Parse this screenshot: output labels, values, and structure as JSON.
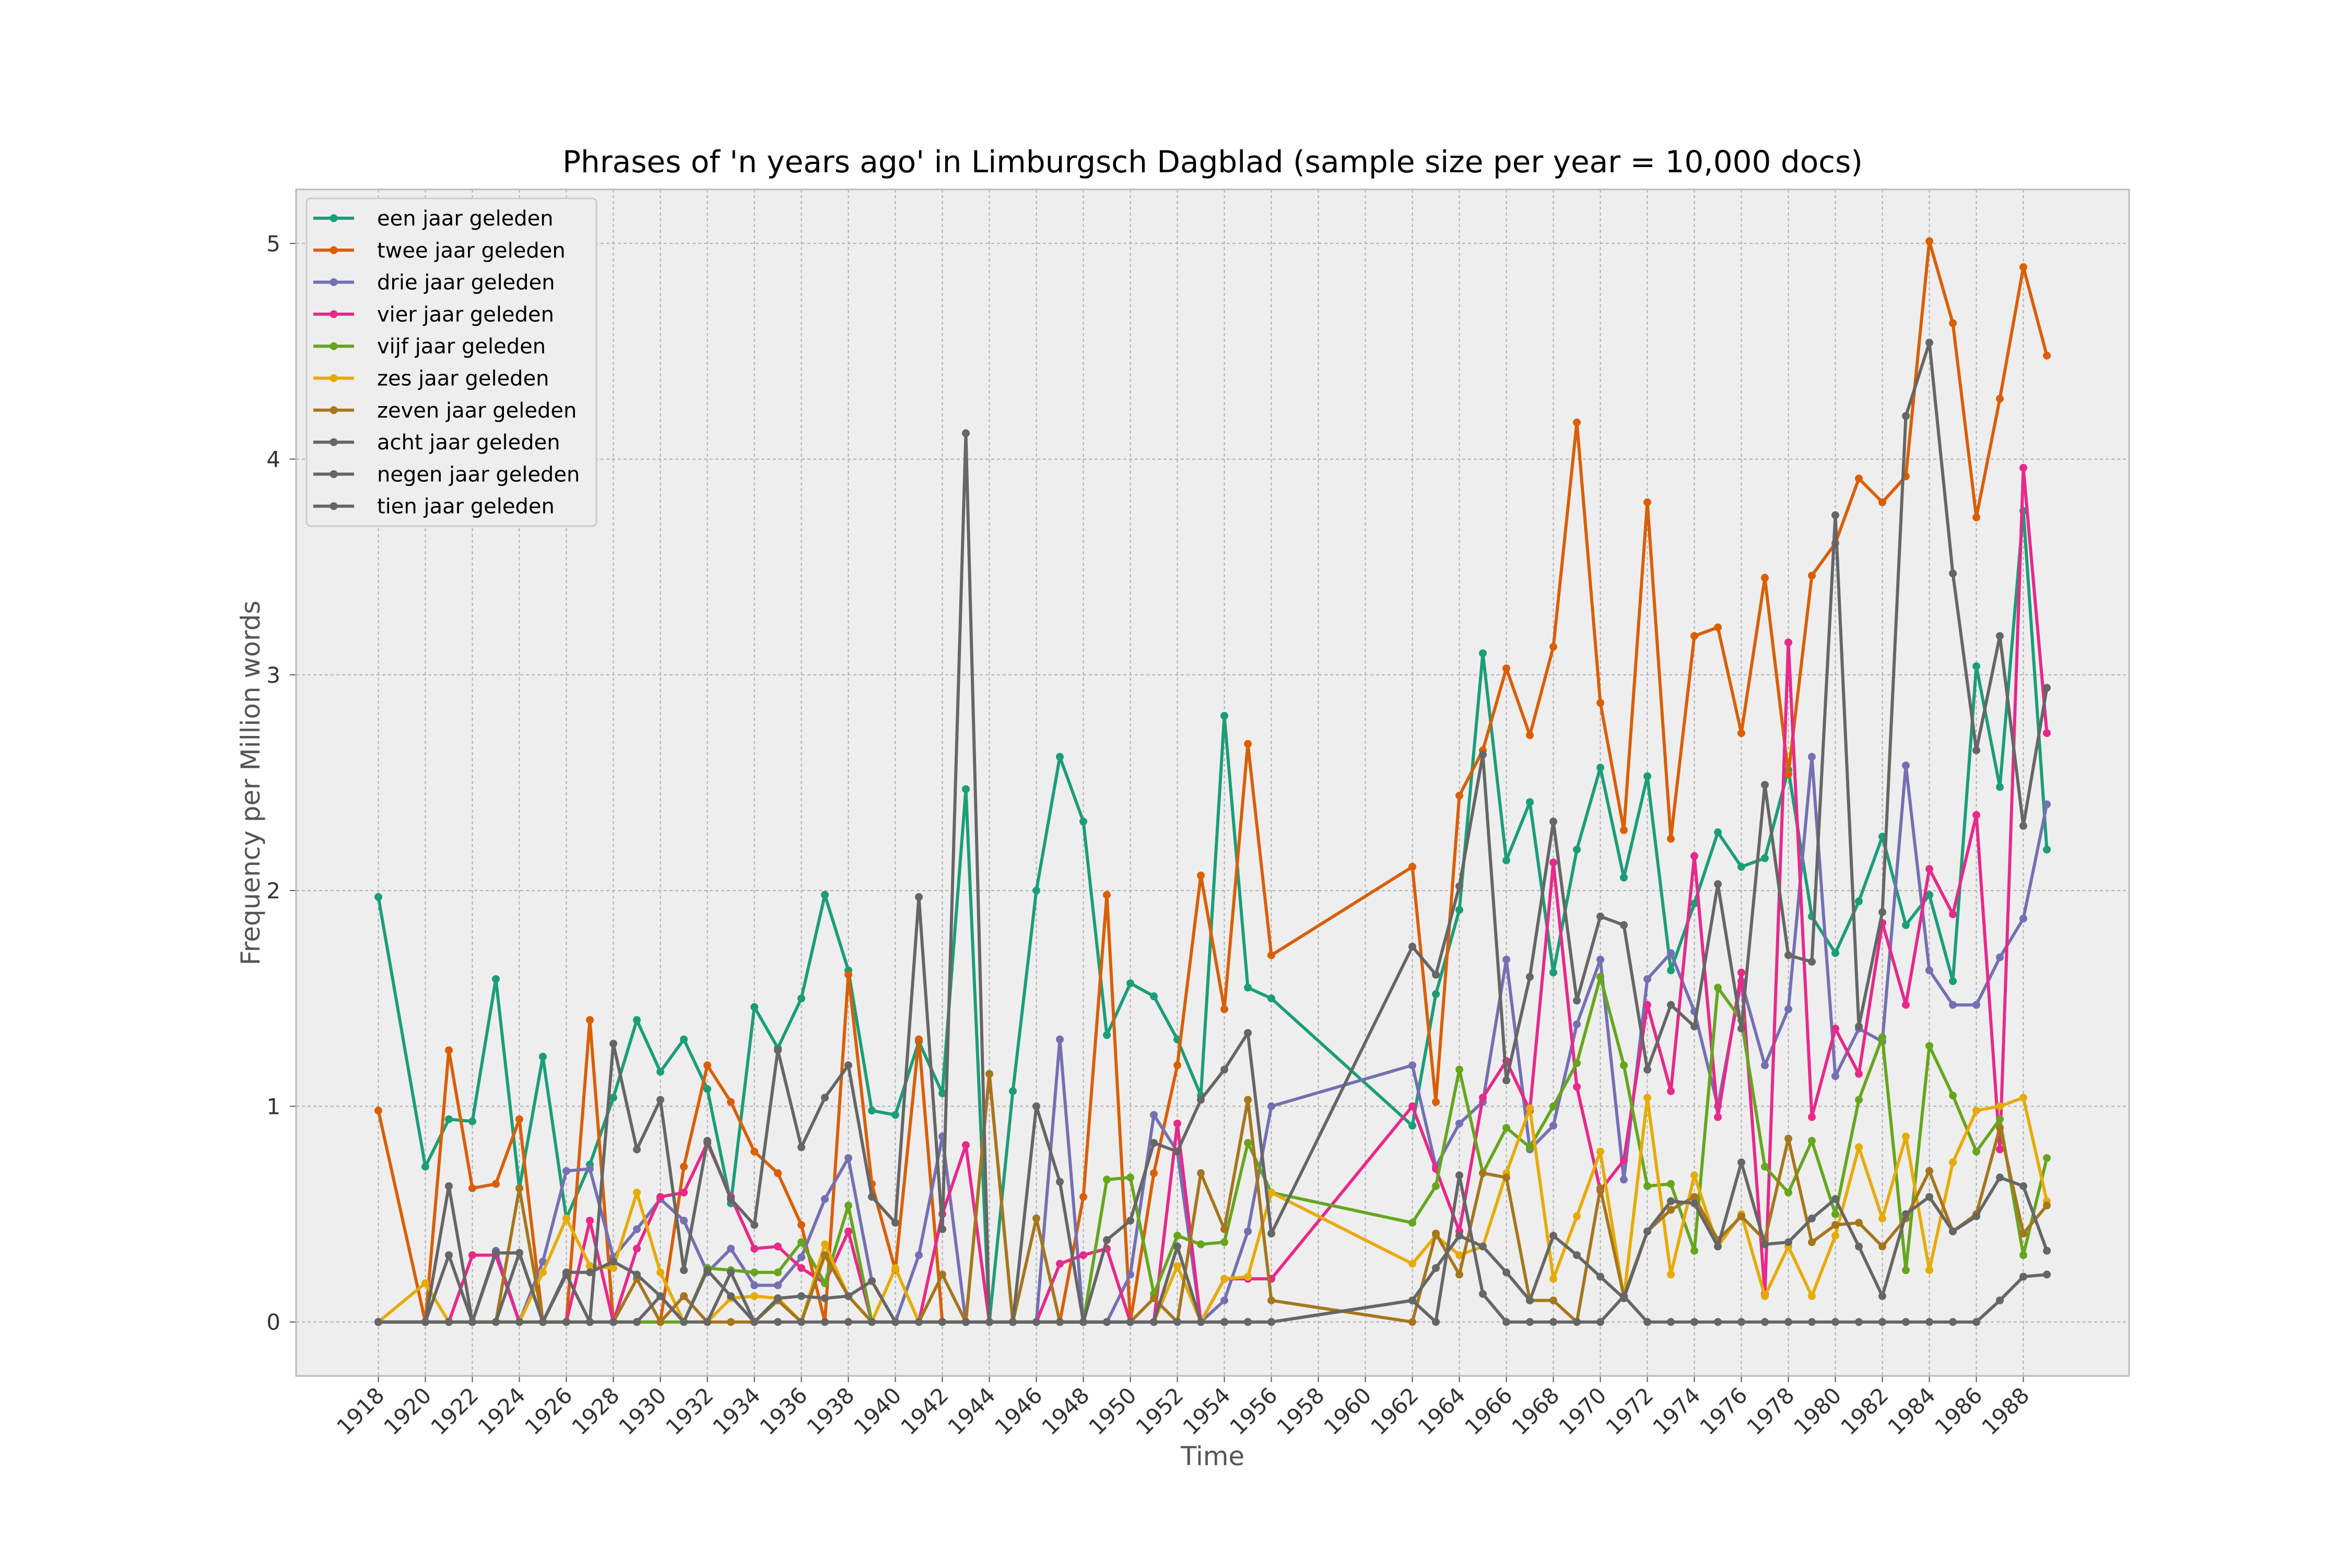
{
  "chart_data": {
    "type": "line",
    "title": "Phrases of 'n years ago' in Limburgsch Dagblad (sample size per year = 10,000 docs)",
    "xlabel": "Time",
    "ylabel": "Frequency per Million words",
    "xlim": [
      1914.5,
      1992.5
    ],
    "ylim": [
      -0.25,
      5.25
    ],
    "xticks": [
      1918,
      1920,
      1922,
      1924,
      1926,
      1928,
      1930,
      1932,
      1934,
      1936,
      1938,
      1940,
      1942,
      1944,
      1946,
      1948,
      1950,
      1952,
      1954,
      1956,
      1958,
      1960,
      1962,
      1964,
      1966,
      1968,
      1970,
      1972,
      1974,
      1976,
      1978,
      1980,
      1982,
      1984,
      1986,
      1988
    ],
    "yticks": [
      0,
      1,
      2,
      3,
      4,
      5
    ],
    "grid": true,
    "legend_position": "top-left",
    "years": [
      1918,
      1920,
      1921,
      1922,
      1923,
      1924,
      1925,
      1926,
      1927,
      1928,
      1929,
      1930,
      1931,
      1932,
      1933,
      1934,
      1935,
      1936,
      1937,
      1938,
      1939,
      1940,
      1941,
      1942,
      1943,
      1944,
      1945,
      1946,
      1947,
      1948,
      1949,
      1950,
      1951,
      1952,
      1953,
      1954,
      1955,
      1956,
      1962,
      1963,
      1964,
      1965,
      1966,
      1967,
      1968,
      1969,
      1970,
      1971,
      1972,
      1973,
      1974,
      1975,
      1976,
      1977,
      1978,
      1979,
      1980,
      1981,
      1982,
      1983,
      1984,
      1985,
      1986,
      1987,
      1988,
      1989
    ],
    "series": [
      {
        "name": "een jaar geleden",
        "color": "#1b9e77",
        "values": [
          1.97,
          0.72,
          0.94,
          0.93,
          1.59,
          0.62,
          1.23,
          0.48,
          0.73,
          1.04,
          1.4,
          1.16,
          1.31,
          1.08,
          0.55,
          1.46,
          1.27,
          1.5,
          1.98,
          1.63,
          0.98,
          0.96,
          1.3,
          1.06,
          2.47,
          0,
          1.07,
          2.0,
          2.62,
          2.32,
          1.33,
          1.57,
          1.51,
          1.31,
          1.05,
          2.81,
          1.55,
          1.5,
          0.91,
          1.52,
          1.91,
          3.1,
          2.14,
          2.41,
          1.62,
          2.19,
          2.57,
          2.06,
          2.53,
          1.63,
          1.94,
          2.27,
          2.11,
          2.15,
          2.56,
          1.88,
          1.71,
          1.95,
          2.25,
          1.84,
          1.98,
          1.58,
          3.04,
          2.48,
          3.76,
          2.19
        ]
      },
      {
        "name": "twee jaar geleden",
        "color": "#d95f02",
        "values": [
          0.98,
          0,
          1.26,
          0.62,
          0.64,
          0.94,
          0,
          0,
          1.4,
          0,
          0,
          0,
          0.72,
          1.19,
          1.02,
          0.79,
          0.69,
          0.45,
          0,
          1.61,
          0.64,
          0.24,
          1.31,
          0,
          0,
          1.15,
          0,
          0,
          0,
          0.58,
          1.98,
          0,
          0.69,
          1.19,
          2.07,
          1.45,
          2.68,
          1.7,
          2.11,
          1.02,
          2.44,
          2.65,
          3.03,
          2.72,
          3.13,
          4.17,
          2.87,
          2.28,
          3.8,
          2.24,
          3.18,
          3.22,
          2.73,
          3.45,
          2.54,
          3.46,
          3.61,
          3.91,
          3.8,
          3.92,
          5.01,
          4.63,
          3.73,
          4.28,
          4.89,
          4.48
        ]
      },
      {
        "name": "drie jaar geleden",
        "color": "#7570b3",
        "values": [
          0,
          0,
          0,
          0,
          0.33,
          0,
          0.28,
          0.7,
          0.71,
          0.3,
          0.43,
          0.57,
          0.47,
          0.23,
          0.34,
          0.17,
          0.17,
          0.3,
          0.57,
          0.76,
          0.19,
          0,
          0.31,
          0.86,
          0,
          0,
          0,
          0,
          1.31,
          0,
          0,
          0.22,
          0.96,
          0.79,
          0,
          0.1,
          0.42,
          1.0,
          1.19,
          0.72,
          0.92,
          1.02,
          1.68,
          0.8,
          0.91,
          1.38,
          1.68,
          0.66,
          1.59,
          1.71,
          1.44,
          1.0,
          1.58,
          1.19,
          1.45,
          2.62,
          1.14,
          1.36,
          1.3,
          2.58,
          1.63,
          1.47,
          1.47,
          1.69,
          1.87,
          2.4
        ]
      },
      {
        "name": "vier jaar geleden",
        "color": "#e7298a",
        "values": [
          0,
          0,
          0,
          0.31,
          0.31,
          0,
          0,
          0,
          0.47,
          0,
          0.34,
          0.58,
          0.6,
          0.83,
          0.58,
          0.34,
          0.35,
          0.25,
          0.18,
          0.42,
          0,
          0,
          0,
          0.5,
          0.82,
          0,
          0,
          0,
          0.27,
          0.31,
          0.34,
          0,
          0,
          0.92,
          0,
          0.2,
          0.2,
          0.2,
          1.0,
          0.71,
          0.42,
          1.04,
          1.21,
          0.98,
          2.13,
          1.09,
          0.61,
          0.75,
          1.47,
          1.07,
          2.16,
          0.95,
          1.62,
          0.13,
          3.15,
          0.95,
          1.36,
          1.15,
          1.85,
          1.47,
          2.1,
          1.89,
          2.35,
          0.8,
          3.96,
          2.73
        ]
      },
      {
        "name": "vijf jaar geleden",
        "color": "#66a61e",
        "values": [
          0,
          0,
          0,
          0,
          0,
          0,
          0,
          0,
          0,
          0,
          0,
          0,
          0,
          0.25,
          0.24,
          0.23,
          0.23,
          0.37,
          0.18,
          0.54,
          0,
          0,
          0,
          0,
          0,
          0,
          0,
          0,
          0,
          0,
          0.66,
          0.67,
          0.13,
          0.4,
          0.36,
          0.37,
          0.83,
          0.6,
          0.46,
          0.63,
          1.17,
          0.69,
          0.9,
          0.81,
          1.0,
          1.2,
          1.6,
          1.19,
          0.63,
          0.64,
          0.33,
          1.55,
          1.4,
          0.72,
          0.6,
          0.84,
          0.5,
          1.03,
          1.32,
          0.24,
          1.28,
          1.05,
          0.79,
          0.94,
          0.31,
          0.76
        ]
      },
      {
        "name": "zes jaar geleden",
        "color": "#e6ab02",
        "values": [
          0,
          0.18,
          0,
          0,
          0,
          0,
          0.23,
          0.48,
          0.26,
          0.25,
          0.6,
          0.23,
          0,
          0,
          0.11,
          0.12,
          0.11,
          0,
          0.36,
          0.12,
          0,
          0.25,
          0,
          0,
          0,
          0,
          0,
          0,
          0,
          0,
          0,
          0,
          0,
          0.26,
          0,
          0.2,
          0.21,
          0.6,
          0.27,
          0.4,
          0.31,
          0.35,
          0.69,
          0.99,
          0.2,
          0.49,
          0.79,
          0.11,
          1.04,
          0.22,
          0.68,
          0.35,
          0.5,
          0.12,
          0.35,
          0.12,
          0.4,
          0.81,
          0.48,
          0.86,
          0.24,
          0.74,
          0.98,
          1.0,
          1.04,
          0.56
        ]
      },
      {
        "name": "zeven jaar geleden",
        "color": "#a6761d",
        "values": [
          0,
          0,
          0,
          0,
          0,
          0.62,
          0,
          0,
          0,
          0,
          0.2,
          0,
          0.12,
          0,
          0,
          0,
          0.1,
          0,
          0.31,
          0.12,
          0,
          0,
          0,
          0.22,
          0,
          1.15,
          0,
          0.48,
          0,
          0,
          0,
          0,
          0.11,
          0,
          0.69,
          0.43,
          1.03,
          0.1,
          0,
          0.41,
          0.22,
          0.69,
          0.67,
          0.1,
          0.1,
          0,
          0.62,
          0.12,
          0.42,
          0.52,
          0.58,
          0.38,
          0.49,
          0.38,
          0.85,
          0.37,
          0.45,
          0.46,
          0.35,
          0.48,
          0.7,
          0.42,
          0.5,
          0.9,
          0.41,
          0.54
        ]
      },
      {
        "name": "acht jaar geleden",
        "color": "#666666",
        "values": [
          0,
          0,
          0.31,
          0,
          0,
          0,
          0,
          0,
          0,
          0,
          0,
          0.12,
          0,
          0,
          0.23,
          0,
          0,
          0,
          0,
          0,
          0,
          0,
          0,
          0,
          0,
          0,
          0,
          0,
          0,
          0,
          0,
          0,
          0,
          0,
          0,
          0,
          0,
          0,
          0.1,
          0.25,
          0.4,
          0.35,
          0.23,
          0.1,
          0.4,
          0.31,
          0.21,
          0.11,
          0.42,
          0.56,
          0.55,
          0.35,
          0.74,
          0.36,
          0.37,
          0.48,
          0.57,
          0.35,
          0.12,
          0.5,
          0.58,
          0.42,
          0.49,
          0.67,
          0.63,
          0.33
        ]
      },
      {
        "name": "negen jaar geleden",
        "color": "#666666",
        "values": [
          0,
          0,
          0,
          0,
          0.32,
          0.32,
          0,
          0.23,
          0.23,
          0.28,
          0.22,
          0.12,
          0,
          0.24,
          0.12,
          0,
          0.11,
          0.12,
          0.11,
          0.12,
          0.19,
          0,
          0,
          0,
          0,
          0,
          0,
          0,
          0,
          0,
          0,
          0,
          0,
          0.35,
          0,
          0,
          0,
          0,
          0.1,
          0,
          0.68,
          0.13,
          0,
          0,
          0,
          0,
          0,
          0.12,
          0,
          0,
          0,
          0,
          0,
          0,
          0,
          0,
          0,
          0,
          0,
          0,
          0,
          0,
          0,
          0.1,
          0.21,
          0.22
        ]
      },
      {
        "name": "tien jaar geleden",
        "color": "#666666",
        "values": [
          0,
          0,
          0.63,
          0,
          0,
          0.32,
          0,
          0.22,
          0,
          1.29,
          0.8,
          1.03,
          0.24,
          0.84,
          0.57,
          0.45,
          1.26,
          0.81,
          1.04,
          1.19,
          0.58,
          0.46,
          1.97,
          0.43,
          4.12,
          0,
          0,
          1.0,
          0.65,
          0,
          0.38,
          0.47,
          0.83,
          0.79,
          1.03,
          1.17,
          1.34,
          0.41,
          1.74,
          1.61,
          2.02,
          2.63,
          1.12,
          1.6,
          2.32,
          1.49,
          1.88,
          1.84,
          1.17,
          1.47,
          1.37,
          2.03,
          1.36,
          2.49,
          1.7,
          1.67,
          3.74,
          1.37,
          1.9,
          4.2,
          4.54,
          3.47,
          2.65,
          3.18,
          2.3,
          2.94
        ]
      }
    ]
  }
}
